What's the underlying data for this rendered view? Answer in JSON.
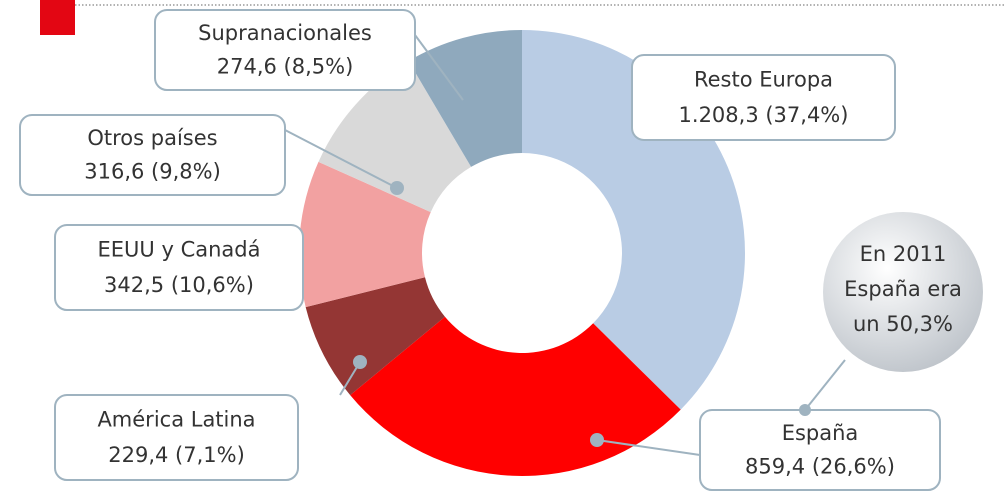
{
  "chart_data": {
    "type": "donut",
    "categories": [
      "Resto Europa",
      "España",
      "América Latina",
      "EEUU y Canadá",
      "Otros países",
      "Supranacionales"
    ],
    "values": [
      1208.3,
      859.4,
      229.4,
      342.5,
      316.6,
      274.6
    ],
    "value_labels": [
      "1.208,3 (37,4%)",
      "859,4 (26,6%)",
      "229,4 (7,1%)",
      "342,5 (10,6%)",
      "316,6 (9,8%)",
      "274,6 (8,5%)"
    ],
    "colors": [
      "#b9cce4",
      "#ff0000",
      "#943634",
      "#f2a1a1",
      "#d9d9d9",
      "#8fa9bd"
    ],
    "annotation": [
      "En 2011",
      "España era",
      "un 50,3%"
    ]
  }
}
